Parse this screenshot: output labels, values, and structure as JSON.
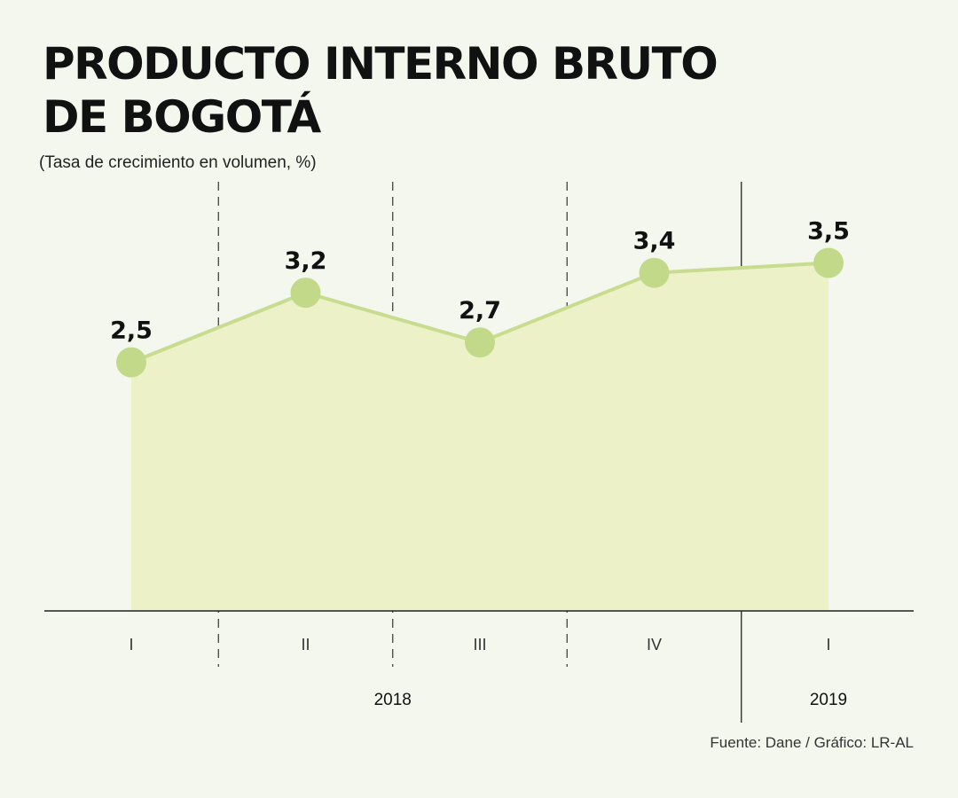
{
  "title_line1": "PRODUCTO INTERNO BRUTO",
  "title_line2": "DE BOGOTÁ",
  "subtitle": "(Tasa de crecimiento en volumen, %)",
  "source": "Fuente: Dane / Gráfico: LR-AL",
  "colors": {
    "background": "#f3f7ee",
    "area": "#ecf1c8",
    "line": "#c7dc8f",
    "marker": "#c3d98a"
  },
  "chart_data": {
    "type": "area",
    "categories": [
      "I",
      "II",
      "III",
      "IV",
      "I"
    ],
    "years": [
      {
        "label": "2018",
        "quarters": [
          0,
          1,
          2,
          3
        ]
      },
      {
        "label": "2019",
        "quarters": [
          4
        ]
      }
    ],
    "values": [
      2.5,
      3.2,
      2.7,
      3.4,
      3.5
    ],
    "value_labels": [
      "2,5",
      "3,2",
      "2,7",
      "3,4",
      "3,5"
    ],
    "ylim": [
      0,
      4.1
    ],
    "grid": false,
    "legend": "none"
  }
}
